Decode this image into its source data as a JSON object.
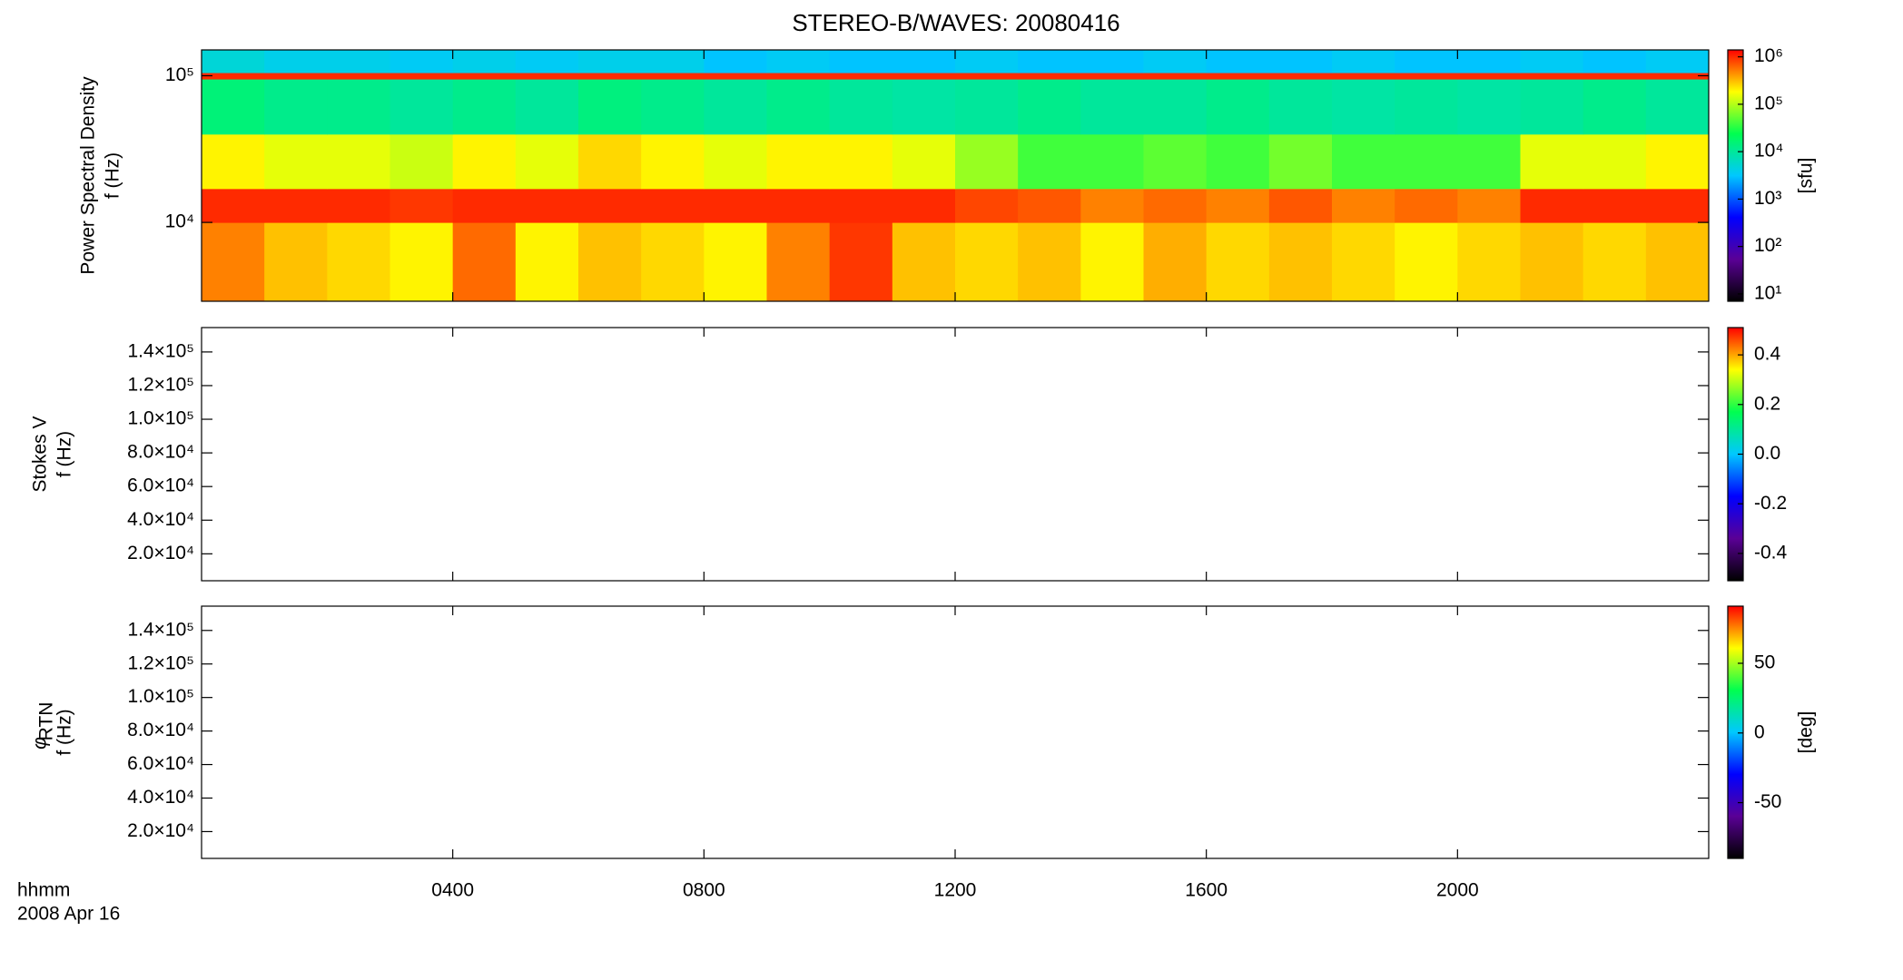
{
  "chart_data": [
    {
      "type": "spectrogram",
      "title": "STEREO-B/WAVES: 20080416",
      "y_label": "Power Spectral Density",
      "y_unit_label": "f (Hz)",
      "colorbar_label": "[sfu]",
      "yscale": "log",
      "ylim": [
        2900,
        150000
      ],
      "yticks": [
        {
          "value": 10000,
          "label": "10⁴"
        },
        {
          "value": 100000,
          "label": "10⁵"
        }
      ],
      "zscale": "log",
      "zlim": [
        7,
        1400000
      ],
      "zticks": [
        {
          "value": 10,
          "label": "10¹"
        },
        {
          "value": 100,
          "label": "10²"
        },
        {
          "value": 1000,
          "label": "10³"
        },
        {
          "value": 10000,
          "label": "10⁴"
        },
        {
          "value": 100000,
          "label": "10⁵"
        },
        {
          "value": 1000000,
          "label": "10⁶"
        }
      ],
      "colormap": [
        "#000000",
        "#5a0096",
        "#0000ff",
        "#00c8ff",
        "#00ff50",
        "#ffff00",
        "#ff0000"
      ],
      "x_edges": [
        0,
        1,
        2,
        3,
        4,
        5,
        6,
        7,
        8,
        9,
        10,
        11,
        12,
        13,
        14,
        15,
        16,
        17,
        18,
        19,
        20,
        21,
        22,
        23,
        24
      ],
      "y_edges": [
        2900,
        10000,
        17000,
        40000,
        95000,
        105000,
        150000
      ],
      "values": [
        [
          500000,
          300000,
          250000,
          200000,
          600000,
          200000,
          300000,
          250000,
          200000,
          500000,
          900000,
          300000,
          250000,
          300000,
          200000,
          350000,
          250000,
          300000,
          250000,
          200000,
          250000,
          300000,
          250000,
          300000
        ],
        [
          1000000,
          1000000,
          1000000,
          900000,
          1000000,
          1000000,
          1000000,
          1000000,
          1000000,
          1000000,
          1000000,
          1000000,
          800000,
          700000,
          500000,
          600000,
          500000,
          700000,
          500000,
          600000,
          500000,
          1000000,
          1000000,
          1000000
        ],
        [
          200000,
          150000,
          150000,
          120000,
          200000,
          150000,
          250000,
          200000,
          150000,
          200000,
          200000,
          150000,
          80000,
          40000,
          40000,
          50000,
          40000,
          60000,
          40000,
          40000,
          40000,
          150000,
          150000,
          200000
        ],
        [
          15000,
          12000,
          12000,
          10000,
          12000,
          10000,
          14000,
          12000,
          10000,
          12000,
          10000,
          9000,
          10000,
          12000,
          10000,
          10000,
          12000,
          10000,
          9000,
          10000,
          9000,
          10000,
          12000,
          10000
        ],
        [
          1000000,
          1000000,
          1000000,
          1000000,
          1000000,
          1000000,
          1000000,
          1000000,
          1000000,
          1000000,
          1000000,
          1000000,
          1000000,
          1000000,
          1000000,
          1000000,
          1000000,
          1000000,
          1000000,
          1000000,
          1000000,
          1000000,
          1000000,
          1000000
        ],
        [
          5000,
          4000,
          4000,
          3500,
          4000,
          3500,
          4000,
          4000,
          3000,
          3500,
          3000,
          3000,
          3500,
          3000,
          3000,
          3500,
          3000,
          3000,
          3500,
          3000,
          3000,
          3500,
          3000,
          3500
        ]
      ]
    },
    {
      "type": "spectrogram",
      "y_label": "Stokes V",
      "y_unit_label": "f (Hz)",
      "ylim": [
        4000,
        154500
      ],
      "yticks": [
        {
          "value": 20000,
          "label": "2.0×10⁴"
        },
        {
          "value": 40000,
          "label": "4.0×10⁴"
        },
        {
          "value": 60000,
          "label": "6.0×10⁴"
        },
        {
          "value": 80000,
          "label": "8.0×10⁴"
        },
        {
          "value": 100000,
          "label": "1.0×10⁵"
        },
        {
          "value": 120000,
          "label": "1.2×10⁵"
        },
        {
          "value": 140000,
          "label": "1.4×10⁵"
        }
      ],
      "zlim": [
        -0.51,
        0.51
      ],
      "zticks": [
        -0.4,
        -0.2,
        {
          "value": 0,
          "label": "0.0"
        },
        0.2,
        0.4
      ],
      "colormap": [
        "#000000",
        "#5a0096",
        "#0000ff",
        "#00c8ff",
        "#00ff50",
        "#ffff00",
        "#ff0000"
      ]
    },
    {
      "type": "spectrogram",
      "y_label_symbol": "φ",
      "y_label_subscript": "RTN",
      "y_unit_label": "f (Hz)",
      "colorbar_label": "[deg]",
      "ylim": [
        4000,
        154500
      ],
      "yticks": [
        {
          "value": 20000,
          "label": "2.0×10⁴"
        },
        {
          "value": 40000,
          "label": "4.0×10⁴"
        },
        {
          "value": 60000,
          "label": "6.0×10⁴"
        },
        {
          "value": 80000,
          "label": "8.0×10⁴"
        },
        {
          "value": 100000,
          "label": "1.0×10⁵"
        },
        {
          "value": 120000,
          "label": "1.2×10⁵"
        },
        {
          "value": 140000,
          "label": "1.4×10⁵"
        }
      ],
      "zlim": [
        -90,
        91
      ],
      "zticks": [
        -50,
        0,
        50
      ],
      "colormap": [
        "#000000",
        "#5a0096",
        "#0000ff",
        "#00c8ff",
        "#00ff50",
        "#ffff00",
        "#ff0000"
      ],
      "xlim": [
        0,
        24
      ],
      "xticks": [
        {
          "value": 4,
          "label": "0400"
        },
        {
          "value": 8,
          "label": "0800"
        },
        {
          "value": 12,
          "label": "1200"
        },
        {
          "value": 16,
          "label": "1600"
        },
        {
          "value": 20,
          "label": "2000"
        }
      ],
      "x_label": "hhmm",
      "date_label": "2008 Apr 16"
    }
  ]
}
